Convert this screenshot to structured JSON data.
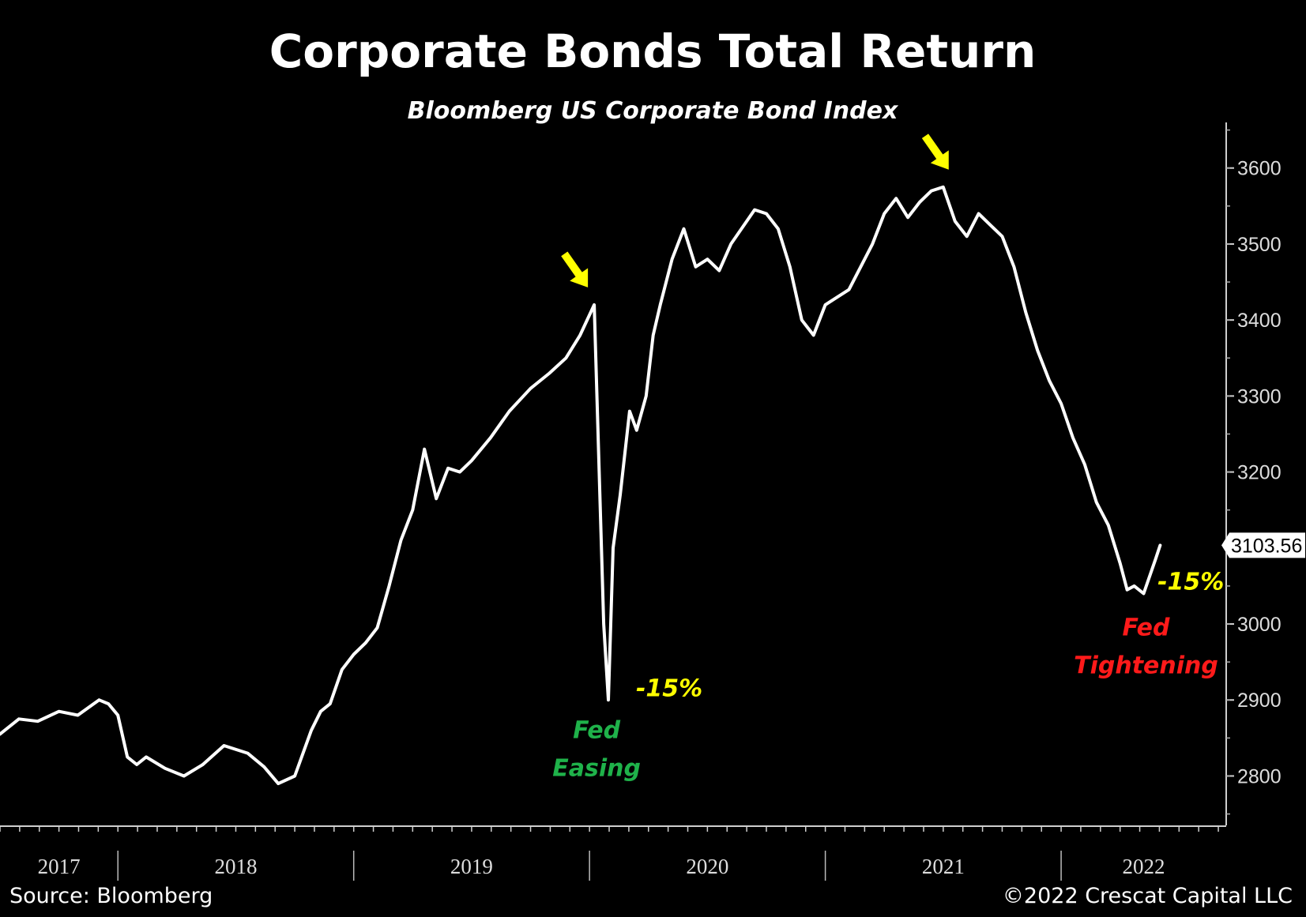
{
  "chart_data": {
    "type": "line",
    "title": "Corporate Bonds Total Return",
    "subtitle": "Bloomberg US Corporate Bond Index",
    "source": "Source: Bloomberg",
    "copyright": "©2022 Crescat Capital LLC",
    "y_ticks": [
      "2800",
      "2900",
      "3000",
      "3100",
      "3200",
      "3300",
      "3400",
      "3500",
      "3600"
    ],
    "ylim": [
      2735,
      3660
    ],
    "x_ticks": [
      "2017",
      "2018",
      "2019",
      "2020",
      "2021",
      "2022"
    ],
    "x_year_starts": [
      2017,
      2018,
      2019,
      2020,
      2021,
      2022
    ],
    "xlim": [
      2017.5,
      2022.7
    ],
    "last_value_label": "3103.56",
    "last_value": 3103.56,
    "line_color": "#ffffff",
    "series": [
      {
        "x": [
          2017.5,
          2017.58,
          2017.66,
          2017.75,
          2017.83,
          2017.92,
          2017.96,
          2018.0,
          2018.04,
          2018.08,
          2018.12,
          2018.2,
          2018.28,
          2018.36,
          2018.45,
          2018.55,
          2018.62,
          2018.68,
          2018.75,
          2018.82,
          2018.86,
          2018.9,
          2018.95,
          2019.0,
          2019.05,
          2019.1,
          2019.15,
          2019.2,
          2019.25,
          2019.3,
          2019.35,
          2019.4,
          2019.45,
          2019.5,
          2019.58,
          2019.66,
          2019.75,
          2019.83,
          2019.9,
          2019.96,
          2020.02,
          2020.06,
          2020.08,
          2020.1,
          2020.13,
          2020.17,
          2020.2,
          2020.24,
          2020.27,
          2020.3,
          2020.35,
          2020.4,
          2020.45,
          2020.5,
          2020.55,
          2020.6,
          2020.7,
          2020.75,
          2020.8,
          2020.85,
          2020.9,
          2020.95,
          2021.0,
          2021.05,
          2021.1,
          2021.15,
          2021.2,
          2021.25,
          2021.3,
          2021.35,
          2021.4,
          2021.45,
          2021.5,
          2021.55,
          2021.6,
          2021.65,
          2021.7,
          2021.75,
          2021.8,
          2021.85,
          2021.9,
          2021.95,
          2022.0,
          2022.05,
          2022.1,
          2022.15,
          2022.2,
          2022.25,
          2022.28,
          2022.31,
          2022.35,
          2022.4,
          2022.42
        ],
        "y": [
          2855,
          2875,
          2872,
          2885,
          2880,
          2900,
          2895,
          2880,
          2825,
          2815,
          2825,
          2810,
          2800,
          2815,
          2840,
          2830,
          2812,
          2790,
          2800,
          2860,
          2885,
          2895,
          2940,
          2960,
          2975,
          2995,
          3050,
          3110,
          3150,
          3230,
          3165,
          3205,
          3200,
          3215,
          3245,
          3280,
          3310,
          3330,
          3350,
          3380,
          3420,
          3000,
          2900,
          3100,
          3170,
          3280,
          3255,
          3300,
          3380,
          3420,
          3480,
          3520,
          3470,
          3480,
          3465,
          3500,
          3545,
          3540,
          3520,
          3470,
          3400,
          3380,
          3420,
          3430,
          3440,
          3470,
          3500,
          3540,
          3560,
          3535,
          3555,
          3570,
          3575,
          3530,
          3510,
          3540,
          3525,
          3510,
          3470,
          3410,
          3360,
          3320,
          3290,
          3245,
          3210,
          3160,
          3130,
          3080,
          3045,
          3050,
          3040,
          3085,
          3103.56
        ]
      }
    ]
  },
  "annotations": {
    "arrows": [
      {
        "name": "peak-2020",
        "x": 2020.02,
        "y": 3420,
        "color": "#ffff00"
      },
      {
        "name": "peak-2021",
        "x": 2021.55,
        "y": 3575,
        "color": "#ffff00"
      }
    ],
    "easing_drop": {
      "text": "-15%",
      "x": 2020.13,
      "y": 2905,
      "color": "#ffff00"
    },
    "easing_label_1": {
      "text": "Fed",
      "x": 2020.03,
      "y": 2850,
      "color": "#1fb24a"
    },
    "easing_label_2": {
      "text": "Easing",
      "x": 2020.03,
      "y": 2800,
      "color": "#1fb24a"
    },
    "tightening_drop": {
      "text": "-15%",
      "x": 2022.55,
      "y": 3045,
      "color": "#ffff00"
    },
    "tightening_label_1": {
      "text": "Fed",
      "x": 2022.36,
      "y": 2985,
      "color": "#ff1a1a"
    },
    "tightening_label_2": {
      "text": "Tightening",
      "x": 2022.36,
      "y": 2935,
      "color": "#ff1a1a"
    }
  }
}
